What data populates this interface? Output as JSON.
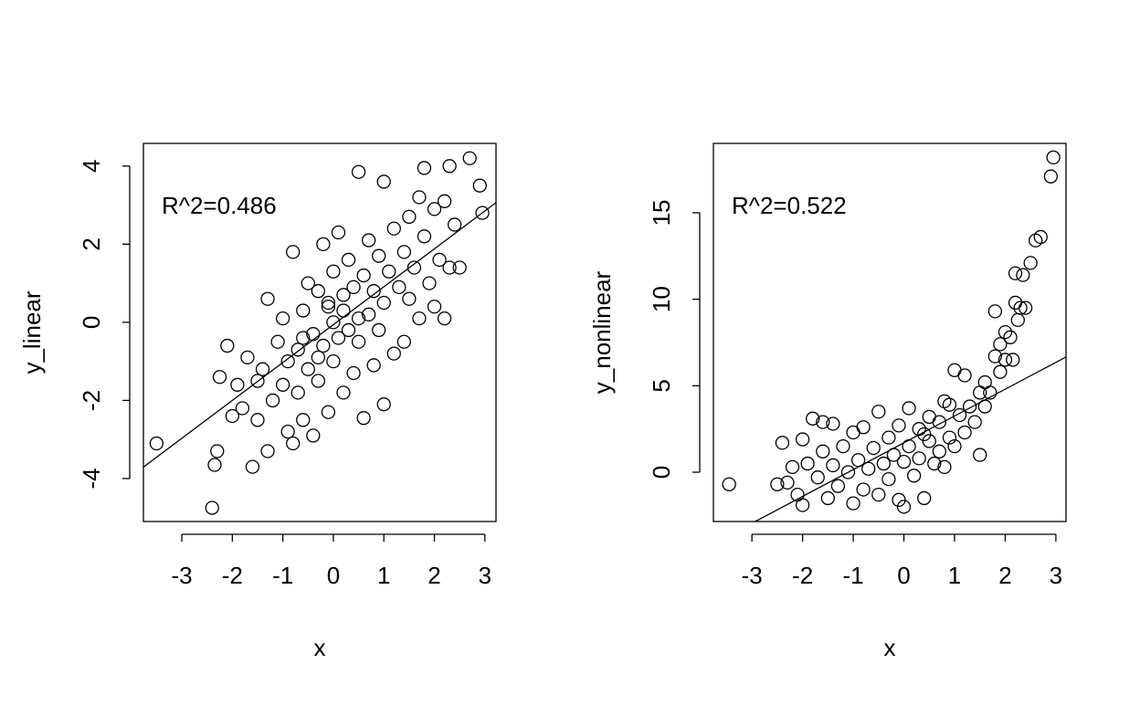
{
  "chart_data": [
    {
      "type": "scatter",
      "xlabel": "x",
      "ylabel": "y_linear",
      "annotation": "R^2=0.486",
      "xlim": [
        -3.76,
        3.22
      ],
      "ylim": [
        -5.1,
        4.58
      ],
      "xticks": [
        -3,
        -2,
        -1,
        0,
        1,
        2,
        3
      ],
      "yticks": [
        -4,
        -2,
        0,
        2,
        4
      ],
      "color": "#000000",
      "fit": {
        "intercept": -0.06,
        "slope": 0.97
      },
      "x": [
        -3.5,
        -2.4,
        -2.35,
        -2.3,
        -2.25,
        -2.1,
        -2.0,
        -1.9,
        -1.8,
        -1.7,
        -1.6,
        -1.5,
        -1.4,
        -1.3,
        -1.3,
        -1.2,
        -1.1,
        -1.0,
        -1.0,
        -0.9,
        -0.9,
        -0.8,
        -0.8,
        -0.7,
        -0.7,
        -0.6,
        -0.6,
        -0.5,
        -0.5,
        -0.4,
        -0.4,
        -0.3,
        -0.3,
        -0.2,
        -0.2,
        -0.1,
        -0.1,
        0.0,
        0.0,
        0.0,
        0.1,
        0.1,
        0.2,
        0.2,
        0.3,
        0.3,
        0.4,
        0.4,
        0.5,
        0.5,
        0.6,
        0.6,
        0.7,
        0.7,
        0.8,
        0.8,
        0.9,
        0.9,
        1.0,
        1.0,
        1.0,
        1.1,
        1.2,
        1.2,
        1.3,
        1.4,
        1.4,
        1.5,
        1.5,
        1.6,
        1.7,
        1.7,
        1.8,
        1.8,
        1.9,
        2.0,
        2.0,
        2.1,
        2.2,
        2.2,
        2.3,
        2.3,
        2.4,
        2.5,
        2.7,
        2.9,
        2.95,
        -1.5,
        -0.3,
        0.2,
        -0.1,
        0.5,
        -0.6
      ],
      "y": [
        -3.1,
        -4.75,
        -3.65,
        -3.3,
        -1.4,
        -0.6,
        -2.4,
        -1.6,
        -2.2,
        -0.9,
        -3.7,
        -2.5,
        -1.2,
        0.6,
        -3.3,
        -2.0,
        -0.5,
        -1.6,
        0.1,
        -2.8,
        -1.0,
        -3.1,
        1.8,
        -0.7,
        -1.8,
        0.3,
        -2.5,
        -1.2,
        1.0,
        -0.3,
        -2.9,
        0.8,
        -1.5,
        2.0,
        -0.6,
        -2.3,
        0.4,
        -1.0,
        1.3,
        0.0,
        -0.4,
        2.3,
        -1.8,
        0.7,
        -0.2,
        1.6,
        -1.3,
        0.9,
        3.85,
        -0.5,
        -2.45,
        1.2,
        0.2,
        2.1,
        -1.1,
        0.8,
        1.7,
        -0.2,
        -2.1,
        3.6,
        0.5,
        1.3,
        -0.8,
        2.4,
        0.9,
        1.8,
        -0.5,
        2.7,
        0.6,
        1.4,
        3.2,
        0.1,
        3.95,
        2.2,
        1.0,
        2.9,
        0.4,
        1.6,
        3.1,
        0.1,
        4.0,
        1.4,
        2.5,
        1.4,
        4.2,
        3.5,
        2.8,
        -1.5,
        -0.9,
        0.3,
        0.5,
        0.1,
        -0.4
      ]
    },
    {
      "type": "scatter",
      "xlabel": "x",
      "ylabel": "y_nonlinear",
      "annotation": "R^2=0.522",
      "xlim": [
        -3.76,
        3.2
      ],
      "ylim": [
        -2.85,
        19.01
      ],
      "xticks": [
        -3,
        -2,
        -1,
        0,
        1,
        2,
        3
      ],
      "yticks": [
        0,
        5,
        10,
        15
      ],
      "color": "#000000",
      "fit": {
        "intercept": 1.7,
        "slope": 1.55
      },
      "x": [
        -3.45,
        -2.4,
        -2.3,
        -2.2,
        -2.1,
        -2.0,
        -2.0,
        -1.9,
        -1.8,
        -1.7,
        -1.6,
        -1.6,
        -1.5,
        -1.4,
        -1.4,
        -1.3,
        -1.2,
        -1.1,
        -1.0,
        -1.0,
        -0.9,
        -0.8,
        -0.8,
        -0.7,
        -0.6,
        -0.5,
        -0.5,
        -0.4,
        -0.3,
        -0.3,
        -0.2,
        -0.1,
        -0.1,
        0.0,
        0.0,
        0.1,
        0.1,
        0.2,
        0.3,
        0.3,
        0.4,
        0.5,
        0.5,
        0.6,
        0.7,
        0.7,
        0.8,
        0.8,
        0.9,
        1.0,
        1.0,
        1.1,
        1.2,
        1.2,
        1.3,
        1.4,
        1.5,
        1.5,
        1.6,
        1.6,
        1.7,
        1.8,
        1.8,
        1.9,
        1.9,
        2.0,
        2.0,
        2.1,
        2.15,
        2.2,
        2.2,
        2.25,
        2.3,
        2.35,
        2.4,
        2.5,
        2.6,
        2.7,
        2.9,
        2.95,
        -2.5,
        0.9,
        0.4
      ],
      "y": [
        -0.7,
        1.7,
        -0.6,
        0.3,
        -1.3,
        1.9,
        -1.9,
        0.5,
        3.1,
        -0.3,
        2.9,
        1.2,
        -1.5,
        0.4,
        2.8,
        -0.8,
        1.5,
        0.0,
        -1.8,
        2.3,
        0.7,
        -1.0,
        2.6,
        0.2,
        1.4,
        3.5,
        -1.3,
        0.5,
        2.0,
        -0.4,
        1.0,
        -1.6,
        2.7,
        0.6,
        -2.0,
        3.7,
        1.5,
        -0.2,
        2.5,
        0.8,
        -1.5,
        1.8,
        3.2,
        0.5,
        2.9,
        1.2,
        4.1,
        0.3,
        2.0,
        5.9,
        1.5,
        3.3,
        2.3,
        5.6,
        3.8,
        2.9,
        1.0,
        4.6,
        3.8,
        5.2,
        4.6,
        6.7,
        9.3,
        7.4,
        5.8,
        8.1,
        6.5,
        7.8,
        6.5,
        11.5,
        9.8,
        8.8,
        9.5,
        11.4,
        9.5,
        12.1,
        13.4,
        13.6,
        17.1,
        18.2,
        -0.7,
        3.9,
        2.2
      ]
    }
  ]
}
